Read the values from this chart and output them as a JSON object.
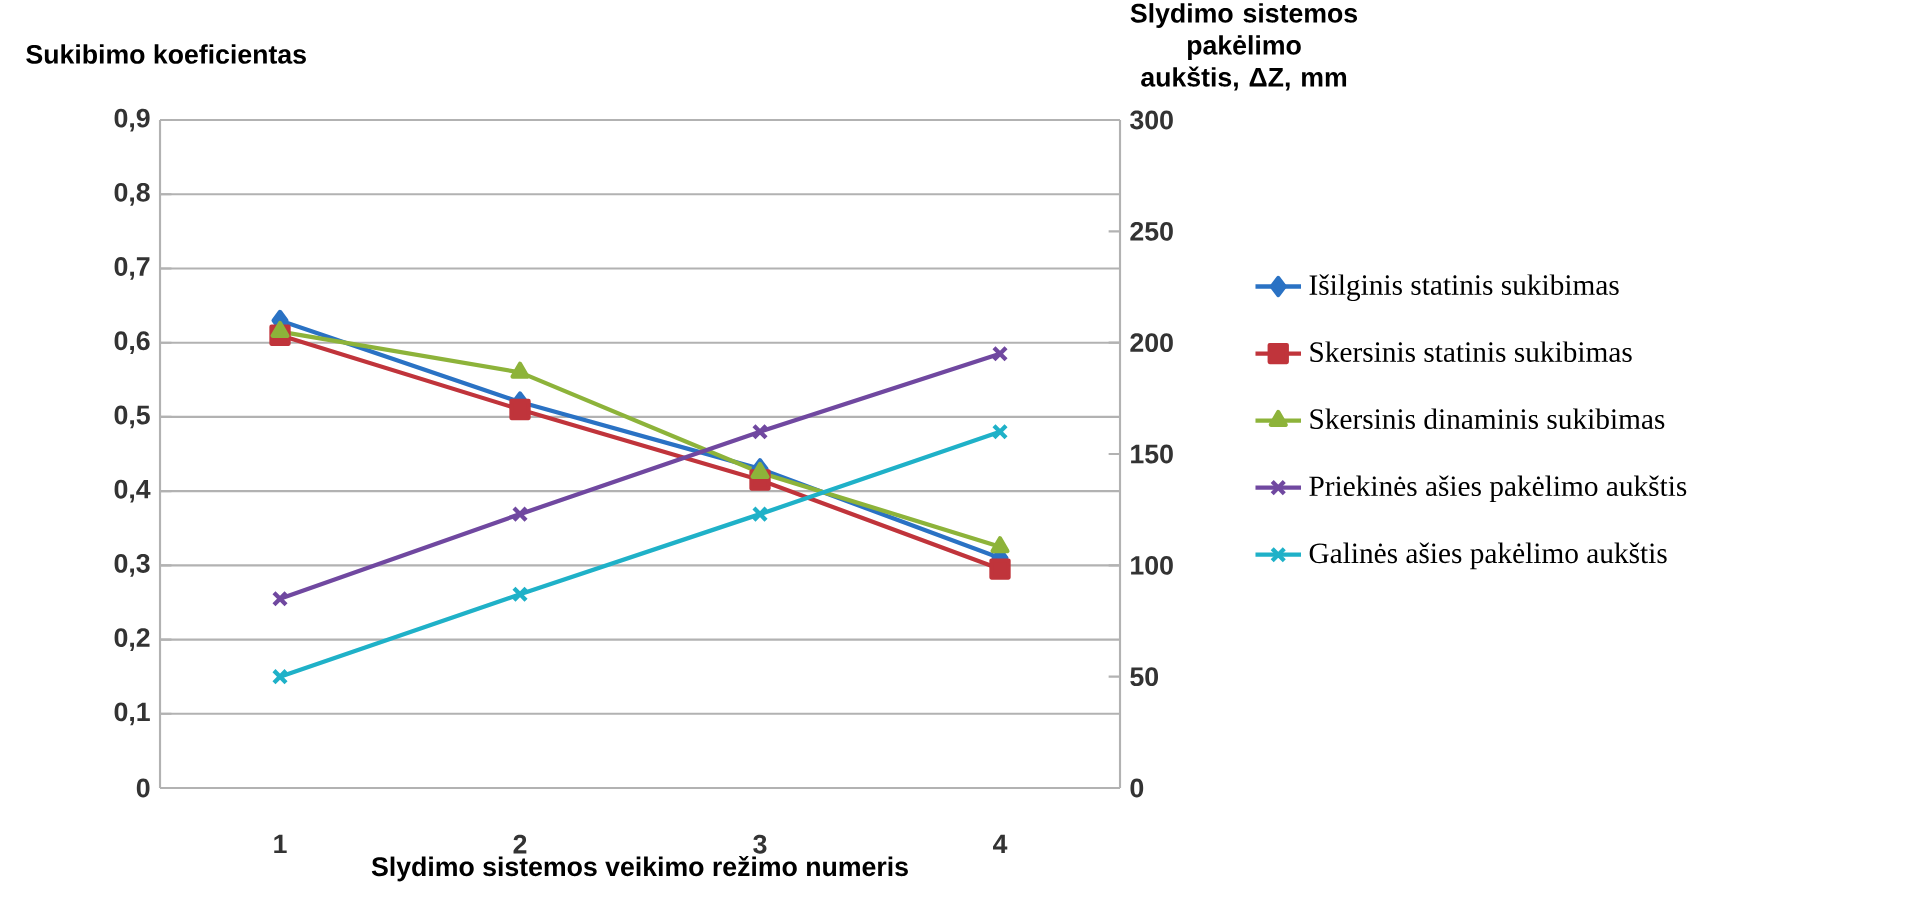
{
  "chart_data": {
    "type": "line",
    "xlabel": "Slydimo sistemos veikimo režimo numeris",
    "ylabel": "Sukibimo koeficientas",
    "y2label": "Slydimo sistemos pakėlimo aukštis, ΔZ, mm",
    "categories": [
      "1",
      "2",
      "3",
      "4"
    ],
    "ylim": [
      0,
      0.9
    ],
    "yticks": [
      {
        "value": 0,
        "label": "0"
      },
      {
        "value": 0.1,
        "label": "0,1"
      },
      {
        "value": 0.2,
        "label": "0,2"
      },
      {
        "value": 0.3,
        "label": "0,3"
      },
      {
        "value": 0.4,
        "label": "0,4"
      },
      {
        "value": 0.5,
        "label": "0,5"
      },
      {
        "value": 0.6,
        "label": "0,6"
      },
      {
        "value": 0.7,
        "label": "0,7"
      },
      {
        "value": 0.8,
        "label": "0,8"
      },
      {
        "value": 0.9,
        "label": "0,9"
      }
    ],
    "y2lim": [
      0,
      300
    ],
    "y2ticks": [
      0,
      50,
      100,
      150,
      200,
      250,
      300
    ],
    "grid": "y",
    "legend": "right",
    "series": [
      {
        "name": "Išilginis statinis sukibimas",
        "color": "#2a72c4",
        "marker": "diamond",
        "values": [
          0.63,
          0.52,
          0.43,
          0.31
        ]
      },
      {
        "name": "Skersinis statinis sukibimas",
        "color": "#c0343b",
        "marker": "square",
        "values": [
          0.61,
          0.51,
          0.415,
          0.295
        ]
      },
      {
        "name": "Skersinis dinaminis sukibimas",
        "color": "#8db33a",
        "marker": "triangle",
        "values": [
          0.615,
          0.56,
          0.425,
          0.325
        ]
      },
      {
        "name": "Priekinės ašies pakėlimo aukštis",
        "color": "#7048a0",
        "marker": "cross",
        "axis": "y2",
        "values": [
          85,
          123,
          160,
          195
        ]
      },
      {
        "name": "Galinės ašies pakėlimo aukštis",
        "color": "#1fb1c8",
        "marker": "cross",
        "axis": "y2",
        "values": [
          50,
          87,
          123,
          160
        ]
      }
    ]
  }
}
